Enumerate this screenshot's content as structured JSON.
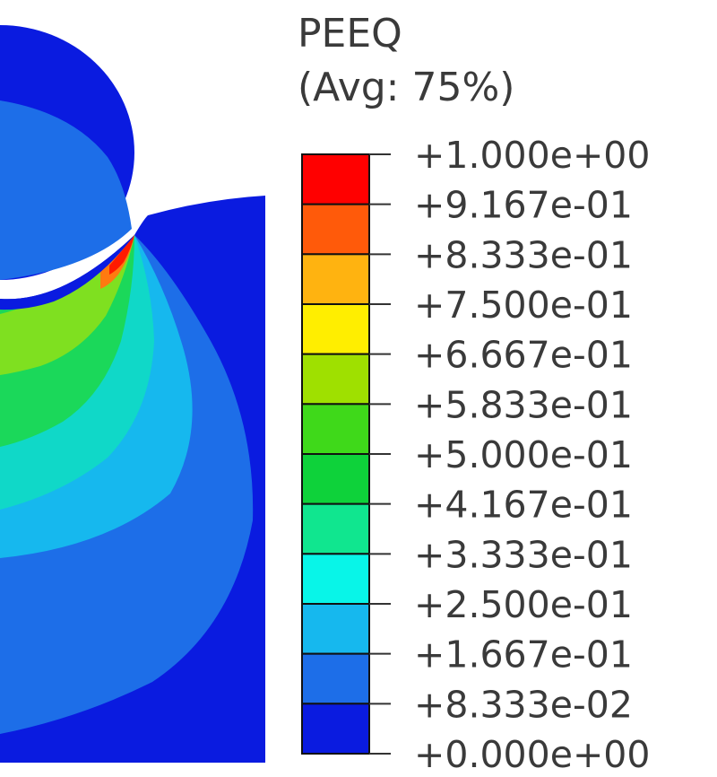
{
  "legend": {
    "variable": "PEEQ",
    "averaging": "(Avg: 75%)",
    "tick_labels": [
      "+1.000e+00",
      "+9.167e-01",
      "+8.333e-01",
      "+7.500e-01",
      "+6.667e-01",
      "+5.833e-01",
      "+5.000e-01",
      "+4.167e-01",
      "+3.333e-01",
      "+2.500e-01",
      "+1.667e-01",
      "+8.333e-02",
      "+0.000e+00"
    ],
    "band_colors": [
      "#ff0000",
      "#ff5a0a",
      "#ffb310",
      "#ffee00",
      "#9fe000",
      "#3fd91a",
      "#0ed23a",
      "#10e68f",
      "#08f5e8",
      "#16b8ee",
      "#1d6ee8",
      "#0a1be0"
    ]
  },
  "contour_colors": {
    "base": "#0a1be0",
    "level_1": "#1d6ee8",
    "level_2": "#16b8ee",
    "level_3": "#10d8c8",
    "level_4": "#1bd85a",
    "level_5": "#7fe020",
    "level_6": "#ff7a10",
    "level_7": "#ff1a00"
  }
}
